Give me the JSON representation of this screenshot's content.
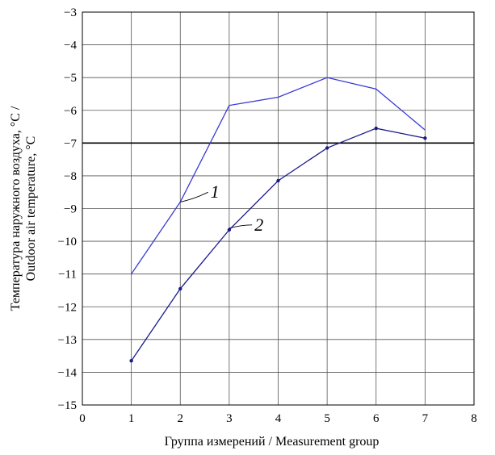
{
  "chart_data": {
    "type": "line",
    "xlabel": "Группа измерений / Measurement group",
    "ylabel_line1": "Температура наружного воздуха, °C /",
    "ylabel_line2": "Outdoor air temperature, °C",
    "xlim": [
      0,
      8
    ],
    "ylim": [
      -15,
      -3
    ],
    "x_ticks": [
      0,
      1,
      2,
      3,
      4,
      5,
      6,
      7,
      8
    ],
    "y_ticks": [
      -15,
      -14,
      -13,
      -12,
      -11,
      -10,
      -9,
      -8,
      -7,
      -6,
      -5,
      -4,
      -3
    ],
    "x_tick_labels": [
      "0",
      "1",
      "2",
      "3",
      "4",
      "5",
      "6",
      "7",
      "8"
    ],
    "y_tick_labels": [
      "−15",
      "−14",
      "−13",
      "−12",
      "−11",
      "−10",
      "−9",
      "−8",
      "−7",
      "−6",
      "−5",
      "−4",
      "−3"
    ],
    "grid": true,
    "reference_line_y": -7,
    "series": [
      {
        "name": "1",
        "color": "#3a3ad8",
        "x": [
          1,
          2,
          3,
          4,
          5,
          6,
          7
        ],
        "values": [
          -11.0,
          -8.8,
          -5.85,
          -5.6,
          -5.0,
          -5.35,
          -6.6
        ],
        "label_anchor": [
          2,
          -8.8
        ],
        "label_at": [
          2.6,
          -8.5
        ],
        "markers": false
      },
      {
        "name": "2",
        "color": "#1a1a8c",
        "x": [
          1,
          2,
          3,
          4,
          5,
          6,
          7
        ],
        "values": [
          -13.65,
          -11.45,
          -9.65,
          -8.15,
          -7.15,
          -6.55,
          -6.85
        ],
        "label_anchor": [
          3,
          -9.6
        ],
        "label_at": [
          3.5,
          -9.5
        ],
        "markers": true
      }
    ]
  }
}
